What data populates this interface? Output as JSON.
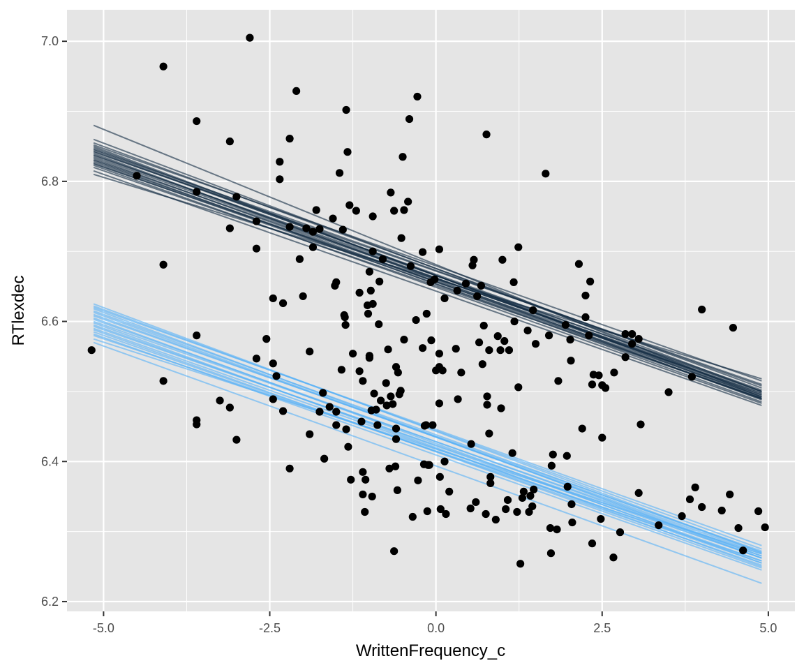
{
  "chart_data": {
    "type": "scatter",
    "title": "",
    "xlabel": "WrittenFrequency_c",
    "ylabel": "RTlexdec",
    "xlim": [
      -5.55,
      5.4
    ],
    "ylim": [
      6.186,
      7.045
    ],
    "x_ticks": [
      -5.0,
      -2.5,
      0.0,
      2.5,
      5.0
    ],
    "x_tick_labels": [
      "-5.0",
      "-2.5",
      "0.0",
      "2.5",
      "5.0"
    ],
    "y_ticks": [
      6.2,
      6.4,
      6.6,
      6.8,
      7.0
    ],
    "y_tick_labels": [
      "6.2",
      "6.4",
      "6.6",
      "6.8",
      "7.0"
    ],
    "grid": true,
    "legend": "none",
    "colors": {
      "panel": "#e5e5e5",
      "grid": "#ffffff",
      "points": "#000000",
      "dark_lines": "#132b43",
      "light_lines": "#56b1f7"
    },
    "points": [
      [
        -5.18,
        6.559
      ],
      [
        -4.5,
        6.808
      ],
      [
        -4.1,
        6.964
      ],
      [
        -4.1,
        6.681
      ],
      [
        -4.1,
        6.515
      ],
      [
        -3.6,
        6.886
      ],
      [
        -3.6,
        6.785
      ],
      [
        -3.6,
        6.58
      ],
      [
        -3.6,
        6.459
      ],
      [
        -3.6,
        6.453
      ],
      [
        -3.1,
        6.857
      ],
      [
        -3.1,
        6.733
      ],
      [
        -3.1,
        6.477
      ],
      [
        -3.25,
        6.487
      ],
      [
        -3.0,
        6.778
      ],
      [
        -3.0,
        6.431
      ],
      [
        -2.8,
        7.005
      ],
      [
        -2.7,
        6.743
      ],
      [
        -2.7,
        6.704
      ],
      [
        -2.7,
        6.547
      ],
      [
        -2.55,
        6.575
      ],
      [
        -2.45,
        6.633
      ],
      [
        -2.45,
        6.54
      ],
      [
        -2.45,
        6.489
      ],
      [
        -2.4,
        6.522
      ],
      [
        -2.35,
        6.828
      ],
      [
        -2.35,
        6.803
      ],
      [
        -2.3,
        6.626
      ],
      [
        -2.3,
        6.472
      ],
      [
        -2.2,
        6.861
      ],
      [
        -2.2,
        6.735
      ],
      [
        -2.2,
        6.39
      ],
      [
        -2.1,
        6.929
      ],
      [
        -2.05,
        6.689
      ],
      [
        -2.0,
        6.636
      ],
      [
        -1.95,
        6.733
      ],
      [
        -1.9,
        6.557
      ],
      [
        -1.9,
        6.439
      ],
      [
        -1.85,
        6.728
      ],
      [
        -1.85,
        6.706
      ],
      [
        -1.8,
        6.759
      ],
      [
        -1.75,
        6.732
      ],
      [
        -1.75,
        6.471
      ],
      [
        -1.7,
        6.498
      ],
      [
        -1.68,
        6.404
      ],
      [
        -1.6,
        6.478
      ],
      [
        -1.55,
        6.747
      ],
      [
        -1.52,
        6.651
      ],
      [
        -1.5,
        6.656
      ],
      [
        -1.5,
        6.471
      ],
      [
        -1.5,
        6.452
      ],
      [
        -1.45,
        6.812
      ],
      [
        -1.42,
        6.531
      ],
      [
        -1.4,
        6.731
      ],
      [
        -1.38,
        6.609
      ],
      [
        -1.37,
        6.606
      ],
      [
        -1.36,
        6.595
      ],
      [
        -1.35,
        6.446
      ],
      [
        -1.35,
        6.902
      ],
      [
        -1.33,
        6.842
      ],
      [
        -1.32,
        6.421
      ],
      [
        -1.3,
        6.766
      ],
      [
        -1.28,
        6.374
      ],
      [
        -1.25,
        6.554
      ],
      [
        -1.2,
        6.758
      ],
      [
        -1.15,
        6.641
      ],
      [
        -1.15,
        6.529
      ],
      [
        -1.12,
        6.457
      ],
      [
        -1.1,
        6.515
      ],
      [
        -1.1,
        6.385
      ],
      [
        -1.1,
        6.353
      ],
      [
        -1.07,
        6.328
      ],
      [
        -1.06,
        6.374
      ],
      [
        -1.03,
        6.623
      ],
      [
        -1.02,
        6.611
      ],
      [
        -1.0,
        6.551
      ],
      [
        -1.0,
        6.548
      ],
      [
        -1.0,
        6.671
      ],
      [
        -0.98,
        6.644
      ],
      [
        -0.97,
        6.473
      ],
      [
        -0.96,
        6.35
      ],
      [
        -0.95,
        6.625
      ],
      [
        -0.95,
        6.7
      ],
      [
        -0.95,
        6.75
      ],
      [
        -0.93,
        6.497
      ],
      [
        -0.9,
        6.474
      ],
      [
        -0.88,
        6.452
      ],
      [
        -0.86,
        6.596
      ],
      [
        -0.85,
        6.657
      ],
      [
        -0.83,
        6.487
      ],
      [
        -0.8,
        6.689
      ],
      [
        -0.75,
        6.512
      ],
      [
        -0.74,
        6.48
      ],
      [
        -0.72,
        6.56
      ],
      [
        -0.7,
        6.39
      ],
      [
        -0.68,
        6.784
      ],
      [
        -0.68,
        6.493
      ],
      [
        -0.65,
        6.482
      ],
      [
        -0.63,
        6.758
      ],
      [
        -0.63,
        6.272
      ],
      [
        -0.61,
        6.393
      ],
      [
        -0.6,
        6.432
      ],
      [
        -0.6,
        6.447
      ],
      [
        -0.6,
        6.535
      ],
      [
        -0.58,
        6.359
      ],
      [
        -0.57,
        6.527
      ],
      [
        -0.55,
        6.496
      ],
      [
        -0.53,
        6.501
      ],
      [
        -0.52,
        6.719
      ],
      [
        -0.5,
        6.835
      ],
      [
        -0.48,
        6.574
      ],
      [
        -0.48,
        6.759
      ],
      [
        -0.42,
        6.771
      ],
      [
        -0.4,
        6.889
      ],
      [
        -0.38,
        6.679
      ],
      [
        -0.35,
        6.321
      ],
      [
        -0.3,
        6.602
      ],
      [
        -0.28,
        6.921
      ],
      [
        -0.27,
        6.373
      ],
      [
        -0.2,
        6.699
      ],
      [
        -0.2,
        6.562
      ],
      [
        -0.18,
        6.396
      ],
      [
        -0.17,
        6.451
      ],
      [
        -0.15,
        6.452
      ],
      [
        -0.14,
        6.611
      ],
      [
        -0.13,
        6.329
      ],
      [
        -0.12,
        6.395
      ],
      [
        -0.1,
        6.395
      ],
      [
        -0.08,
        6.656
      ],
      [
        -0.07,
        6.573
      ],
      [
        -0.05,
        6.452
      ],
      [
        -0.02,
        6.66
      ],
      [
        0.0,
        6.53
      ],
      [
        0.05,
        6.703
      ],
      [
        0.05,
        6.554
      ],
      [
        0.05,
        6.535
      ],
      [
        0.05,
        6.483
      ],
      [
        0.06,
        6.378
      ],
      [
        0.07,
        6.332
      ],
      [
        0.1,
        6.53
      ],
      [
        0.13,
        6.4
      ],
      [
        0.13,
        6.633
      ],
      [
        0.15,
        6.325
      ],
      [
        0.2,
        6.357
      ],
      [
        0.3,
        6.561
      ],
      [
        0.32,
        6.644
      ],
      [
        0.33,
        6.489
      ],
      [
        0.38,
        6.527
      ],
      [
        0.45,
        6.654
      ],
      [
        0.52,
        6.333
      ],
      [
        0.53,
        6.425
      ],
      [
        0.55,
        6.68
      ],
      [
        0.57,
        6.688
      ],
      [
        0.6,
        6.342
      ],
      [
        0.62,
        6.636
      ],
      [
        0.65,
        6.57
      ],
      [
        0.68,
        6.651
      ],
      [
        0.7,
        6.539
      ],
      [
        0.72,
        6.594
      ],
      [
        0.75,
        6.325
      ],
      [
        0.76,
        6.867
      ],
      [
        0.77,
        6.493
      ],
      [
        0.77,
        6.481
      ],
      [
        0.8,
        6.559
      ],
      [
        0.8,
        6.44
      ],
      [
        0.82,
        6.378
      ],
      [
        0.82,
        6.369
      ],
      [
        0.9,
        6.317
      ],
      [
        0.93,
        6.579
      ],
      [
        0.97,
        6.559
      ],
      [
        0.98,
        6.476
      ],
      [
        1.0,
        6.688
      ],
      [
        1.03,
        6.572
      ],
      [
        1.05,
        6.332
      ],
      [
        1.08,
        6.345
      ],
      [
        1.1,
        6.559
      ],
      [
        1.15,
        6.412
      ],
      [
        1.17,
        6.656
      ],
      [
        1.18,
        6.6
      ],
      [
        1.22,
        6.328
      ],
      [
        1.24,
        6.706
      ],
      [
        1.24,
        6.506
      ],
      [
        1.27,
        6.254
      ],
      [
        1.3,
        6.348
      ],
      [
        1.32,
        6.357
      ],
      [
        1.38,
        6.587
      ],
      [
        1.4,
        6.328
      ],
      [
        1.42,
        6.351
      ],
      [
        1.45,
        6.336
      ],
      [
        1.46,
        6.616
      ],
      [
        1.47,
        6.36
      ],
      [
        1.5,
        6.568
      ],
      [
        1.65,
        6.811
      ],
      [
        1.7,
        6.58
      ],
      [
        1.72,
        6.305
      ],
      [
        1.73,
        6.269
      ],
      [
        1.74,
        6.394
      ],
      [
        1.76,
        6.41
      ],
      [
        1.82,
        6.303
      ],
      [
        1.84,
        6.515
      ],
      [
        1.95,
        6.595
      ],
      [
        1.97,
        6.408
      ],
      [
        1.98,
        6.364
      ],
      [
        2.02,
        6.574
      ],
      [
        2.03,
        6.544
      ],
      [
        2.04,
        6.339
      ],
      [
        2.05,
        6.313
      ],
      [
        2.15,
        6.682
      ],
      [
        2.2,
        6.447
      ],
      [
        2.25,
        6.637
      ],
      [
        2.25,
        6.606
      ],
      [
        2.3,
        6.58
      ],
      [
        2.32,
        6.657
      ],
      [
        2.35,
        6.51
      ],
      [
        2.35,
        6.283
      ],
      [
        2.37,
        6.524
      ],
      [
        2.45,
        6.523
      ],
      [
        2.48,
        6.318
      ],
      [
        2.5,
        6.434
      ],
      [
        2.5,
        6.509
      ],
      [
        2.55,
        6.505
      ],
      [
        2.67,
        6.263
      ],
      [
        2.68,
        6.527
      ],
      [
        2.77,
        6.299
      ],
      [
        2.85,
        6.582
      ],
      [
        2.85,
        6.549
      ],
      [
        2.95,
        6.568
      ],
      [
        2.95,
        6.582
      ],
      [
        3.05,
        6.355
      ],
      [
        3.05,
        6.575
      ],
      [
        3.08,
        6.453
      ],
      [
        3.35,
        6.309
      ],
      [
        3.5,
        6.499
      ],
      [
        3.7,
        6.322
      ],
      [
        3.82,
        6.346
      ],
      [
        3.85,
        6.521
      ],
      [
        3.9,
        6.363
      ],
      [
        4.0,
        6.617
      ],
      [
        4.0,
        6.335
      ],
      [
        4.3,
        6.33
      ],
      [
        4.42,
        6.353
      ],
      [
        4.47,
        6.591
      ],
      [
        4.55,
        6.305
      ],
      [
        4.62,
        6.273
      ],
      [
        4.85,
        6.329
      ],
      [
        4.95,
        6.306
      ]
    ],
    "series": [
      {
        "values": [
          [
            6.88,
            6.492
          ],
          [
            6.86,
            6.5
          ],
          [
            6.855,
            6.505
          ],
          [
            6.852,
            6.515
          ],
          [
            6.85,
            6.49
          ],
          [
            6.848,
            6.492
          ],
          [
            6.846,
            6.508
          ],
          [
            6.845,
            6.495
          ],
          [
            6.843,
            6.5
          ],
          [
            6.842,
            6.51
          ],
          [
            6.84,
            6.488
          ],
          [
            6.838,
            6.495
          ],
          [
            6.837,
            6.502
          ],
          [
            6.835,
            6.497
          ],
          [
            6.833,
            6.489
          ],
          [
            6.831,
            6.5
          ],
          [
            6.83,
            6.485
          ],
          [
            6.828,
            6.493
          ],
          [
            6.826,
            6.49
          ],
          [
            6.825,
            6.498
          ],
          [
            6.823,
            6.483
          ],
          [
            6.82,
            6.49
          ],
          [
            6.815,
            6.48
          ],
          [
            6.81,
            6.518
          ]
        ]
      },
      {
        "values": [
          [
            6.625,
            6.27
          ],
          [
            6.622,
            6.275
          ],
          [
            6.62,
            6.28
          ],
          [
            6.618,
            6.262
          ],
          [
            6.615,
            6.27
          ],
          [
            6.613,
            6.265
          ],
          [
            6.61,
            6.268
          ],
          [
            6.608,
            6.272
          ],
          [
            6.605,
            6.255
          ],
          [
            6.603,
            6.262
          ],
          [
            6.6,
            6.265
          ],
          [
            6.598,
            6.25
          ],
          [
            6.595,
            6.258
          ],
          [
            6.593,
            6.262
          ],
          [
            6.59,
            6.255
          ],
          [
            6.588,
            6.248
          ],
          [
            6.585,
            6.252
          ],
          [
            6.582,
            6.245
          ],
          [
            6.58,
            6.258
          ],
          [
            6.575,
            6.268
          ],
          [
            6.57,
            6.226
          ]
        ]
      }
    ],
    "line_x_range": [
      -5.15,
      4.9
    ]
  }
}
